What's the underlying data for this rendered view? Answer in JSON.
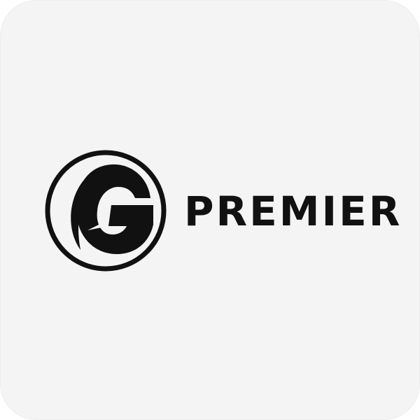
{
  "logo": {
    "wordmark": "PREMIER",
    "emblem_icon": "g-circle-emblem-icon",
    "colors": {
      "tile_background": "#f4f4f4",
      "mark": "#111111"
    }
  }
}
